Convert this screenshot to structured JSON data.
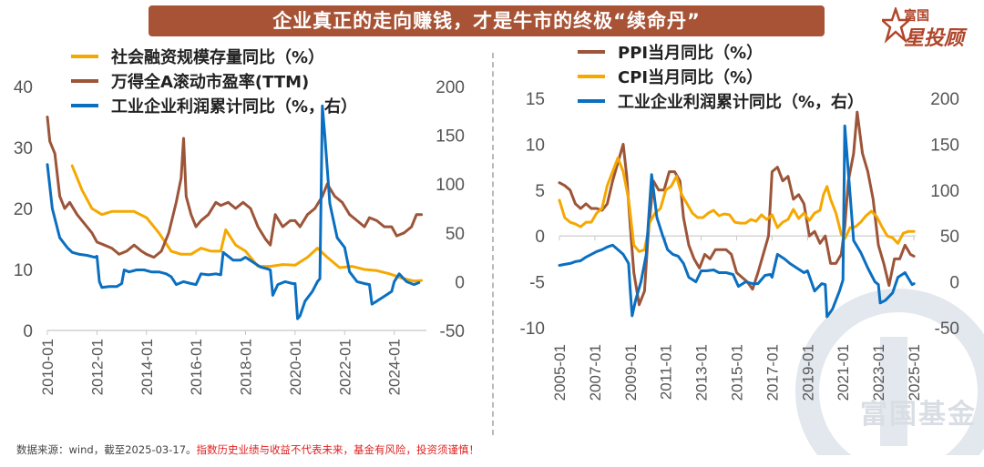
{
  "title": "企业真正的走向赚钱，才是牛市的终极“续命丹”",
  "logo": {
    "top": "富国",
    "bottom": "星投顾"
  },
  "watermark": "富国基金",
  "footer": {
    "source": "数据来源：wind，截至2025-03-17。",
    "warning": "指数历史业绩与收益不代表未来，基金有风险，投资须谨慎！"
  },
  "colors": {
    "orange": "#f5a800",
    "brown": "#9c5538",
    "blue": "#0a6fc0",
    "banner": "#a85335"
  },
  "chart_data": [
    {
      "type": "line",
      "legend": [
        {
          "name": "社会融资规模存量同比（%）",
          "color": "#f5a800"
        },
        {
          "name": "万得全A滚动市盈率(TTM)",
          "color": "#9c5538"
        },
        {
          "name": "工业企业利润累计同比（%，右）",
          "color": "#0a6fc0"
        }
      ],
      "x_ticks": [
        "2010-01",
        "2012-01",
        "2014-01",
        "2016-01",
        "2018-01",
        "2020-01",
        "2022-01",
        "2024-01"
      ],
      "y_left": {
        "ticks": [
          "0",
          "10",
          "20",
          "30",
          "40"
        ],
        "range": [
          0,
          40
        ]
      },
      "y_right": {
        "ticks": [
          "-50",
          "0",
          "50",
          "100",
          "150",
          "200"
        ],
        "range": [
          -50,
          200
        ]
      },
      "series": [
        {
          "name": "社会融资规模存量同比（%）",
          "axis": "left",
          "color": "#f5a800",
          "x": [
            2011.0,
            2011.4,
            2011.8,
            2012.2,
            2012.6,
            2013.0,
            2013.5,
            2014.0,
            2014.5,
            2015.0,
            2015.4,
            2015.8,
            2016.2,
            2016.6,
            2017.0,
            2017.2,
            2017.6,
            2018.0,
            2018.5,
            2019.0,
            2019.5,
            2020.0,
            2020.5,
            2020.9,
            2021.3,
            2021.8,
            2022.3,
            2022.8,
            2023.3,
            2023.8,
            2024.3,
            2024.8,
            2025.1
          ],
          "y": [
            27,
            23,
            20,
            19,
            19.5,
            19.5,
            19.5,
            18.5,
            16,
            13,
            12.5,
            12.5,
            13.5,
            13,
            13,
            16.5,
            14,
            13,
            10.5,
            10.5,
            10.8,
            10.7,
            12,
            13.5,
            12,
            10.3,
            10.5,
            10,
            9.8,
            9.3,
            8.6,
            8.1,
            8.2
          ]
        },
        {
          "name": "万得全A滚动市盈率(TTM)",
          "axis": "left",
          "color": "#9c5538",
          "x": [
            2010.0,
            2010.1,
            2010.3,
            2010.5,
            2010.7,
            2010.9,
            2011.2,
            2011.5,
            2011.8,
            2012.0,
            2012.3,
            2012.6,
            2012.9,
            2013.2,
            2013.5,
            2013.8,
            2014.0,
            2014.3,
            2014.6,
            2014.9,
            2015.2,
            2015.4,
            2015.5,
            2015.6,
            2015.8,
            2016.0,
            2016.2,
            2016.5,
            2016.8,
            2017.0,
            2017.3,
            2017.6,
            2017.9,
            2018.2,
            2018.5,
            2018.8,
            2019.0,
            2019.2,
            2019.5,
            2019.8,
            2020.0,
            2020.2,
            2020.5,
            2020.8,
            2021.1,
            2021.3,
            2021.6,
            2021.9,
            2022.2,
            2022.5,
            2022.8,
            2023.0,
            2023.3,
            2023.6,
            2023.9,
            2024.1,
            2024.4,
            2024.7,
            2024.9,
            2025.1
          ],
          "y": [
            35,
            31,
            29,
            22,
            20,
            21,
            19,
            17.5,
            16,
            14.5,
            14,
            13.5,
            12.5,
            13,
            14,
            13,
            12.5,
            12,
            13,
            16,
            21,
            25,
            31.5,
            22,
            19,
            17,
            18,
            19,
            21,
            20.5,
            21,
            20,
            21,
            20,
            17,
            15,
            14,
            19,
            17,
            18,
            18,
            17,
            19,
            20,
            22,
            24,
            22,
            21,
            19,
            18,
            17,
            18.5,
            18,
            17,
            17,
            15.5,
            16,
            17,
            19,
            19
          ]
        },
        {
          "name": "工业企业利润累计同比（%，右）",
          "axis": "right",
          "color": "#0a6fc0",
          "x": [
            2010.0,
            2010.2,
            2010.5,
            2010.8,
            2011.0,
            2011.3,
            2011.6,
            2011.9,
            2012.0,
            2012.1,
            2012.2,
            2012.5,
            2012.8,
            2013.0,
            2013.1,
            2013.3,
            2013.6,
            2013.9,
            2014.2,
            2014.5,
            2014.8,
            2015.0,
            2015.2,
            2015.5,
            2015.8,
            2016.0,
            2016.2,
            2016.5,
            2016.8,
            2017.0,
            2017.1,
            2017.2,
            2017.5,
            2017.8,
            2018.0,
            2018.3,
            2018.6,
            2018.9,
            2019.0,
            2019.1,
            2019.3,
            2019.6,
            2019.9,
            2020.0,
            2020.1,
            2020.2,
            2020.4,
            2020.7,
            2020.9,
            2021.0,
            2021.1,
            2021.2,
            2021.4,
            2021.7,
            2022.0,
            2022.2,
            2022.5,
            2022.8,
            2023.0,
            2023.1,
            2023.3,
            2023.6,
            2023.9,
            2024.0,
            2024.2,
            2024.5,
            2024.8,
            2025.0
          ],
          "y": [
            120,
            75,
            45,
            35,
            30,
            28,
            27,
            25,
            26,
            0,
            -6,
            -5,
            -5,
            -2,
            12,
            10,
            12,
            12,
            10,
            10,
            8,
            5,
            -3,
            0,
            -2,
            -3,
            8,
            7,
            8,
            7,
            30,
            28,
            22,
            22,
            25,
            20,
            15,
            13,
            12,
            -14,
            -3,
            0,
            -2,
            -2,
            -38,
            -35,
            -20,
            -10,
            0,
            3,
            180,
            150,
            80,
            45,
            35,
            10,
            0,
            -2,
            -3,
            -23,
            -20,
            -15,
            -10,
            0,
            8,
            0,
            -3,
            -1
          ]
        }
      ]
    },
    {
      "type": "line",
      "legend": [
        {
          "name": "PPI当月同比（%）",
          "color": "#9c5538"
        },
        {
          "name": "CPI当月同比（%）",
          "color": "#f5a800"
        },
        {
          "name": "工业企业利润累计同比（%，右）",
          "color": "#0a6fc0"
        }
      ],
      "x_ticks": [
        "2005-01",
        "2007-01",
        "2009-01",
        "2011-01",
        "2013-01",
        "2015-01",
        "2017-01",
        "2019-01",
        "2021-01",
        "2023-01",
        "2025-01"
      ],
      "y_left": {
        "ticks": [
          "-10",
          "-5",
          "0",
          "5",
          "10",
          "15"
        ],
        "range": [
          -10,
          15
        ]
      },
      "y_right": {
        "ticks": [
          "-50",
          "0",
          "50",
          "100",
          "150",
          "200"
        ],
        "range": [
          -50,
          200
        ]
      },
      "series": [
        {
          "name": "PPI当月同比（%）",
          "axis": "left",
          "color": "#9c5538",
          "x": [
            2005.0,
            2005.3,
            2005.6,
            2005.9,
            2006.2,
            2006.5,
            2006.8,
            2007.1,
            2007.4,
            2007.7,
            2008.0,
            2008.3,
            2008.6,
            2008.8,
            2009.0,
            2009.2,
            2009.5,
            2009.8,
            2010.0,
            2010.3,
            2010.6,
            2010.9,
            2011.2,
            2011.5,
            2011.8,
            2012.0,
            2012.3,
            2012.6,
            2012.9,
            2013.2,
            2013.5,
            2013.8,
            2014.1,
            2014.4,
            2014.7,
            2015.0,
            2015.3,
            2015.6,
            2015.9,
            2016.2,
            2016.5,
            2016.8,
            2017.0,
            2017.3,
            2017.6,
            2017.9,
            2018.2,
            2018.5,
            2018.8,
            2019.1,
            2019.4,
            2019.7,
            2020.0,
            2020.3,
            2020.6,
            2020.9,
            2021.1,
            2021.3,
            2021.6,
            2021.8,
            2022.1,
            2022.4,
            2022.7,
            2023.0,
            2023.3,
            2023.6,
            2023.9,
            2024.2,
            2024.5,
            2024.8,
            2025.0
          ],
          "y": [
            5.8,
            5.5,
            5,
            3.5,
            3,
            3.5,
            3,
            3,
            2.8,
            3.5,
            6,
            8,
            10,
            6.5,
            1,
            -4,
            -7.5,
            -6,
            0,
            6,
            5,
            5,
            7,
            7,
            6,
            2,
            -1,
            -2.5,
            -3.5,
            -2,
            -2.5,
            -1.5,
            -1.5,
            -1.5,
            -2,
            -4,
            -4.5,
            -5,
            -5.8,
            -4,
            -2,
            0,
            7,
            7.5,
            6,
            6.5,
            4,
            4.5,
            3.5,
            0,
            0.5,
            -0.8,
            0,
            -3,
            -3,
            -2,
            1,
            6,
            9,
            13.5,
            9,
            7,
            4,
            -1,
            -3,
            -5.4,
            -2.5,
            -2.5,
            -1,
            -2,
            -2.2
          ]
        },
        {
          "name": "CPI当月同比（%）",
          "axis": "left",
          "color": "#f5a800",
          "x": [
            2005.0,
            2005.3,
            2005.6,
            2005.9,
            2006.2,
            2006.5,
            2006.8,
            2007.1,
            2007.4,
            2007.7,
            2008.0,
            2008.3,
            2008.6,
            2008.9,
            2009.2,
            2009.5,
            2009.8,
            2010.1,
            2010.4,
            2010.7,
            2011.0,
            2011.3,
            2011.6,
            2011.9,
            2012.2,
            2012.5,
            2012.8,
            2013.1,
            2013.4,
            2013.7,
            2014.0,
            2014.3,
            2014.6,
            2014.9,
            2015.2,
            2015.5,
            2015.8,
            2016.1,
            2016.4,
            2016.7,
            2017.0,
            2017.3,
            2017.6,
            2017.9,
            2018.2,
            2018.5,
            2018.8,
            2019.1,
            2019.4,
            2019.7,
            2019.9,
            2020.1,
            2020.3,
            2020.6,
            2020.9,
            2021.1,
            2021.4,
            2021.7,
            2022.0,
            2022.3,
            2022.6,
            2022.9,
            2023.2,
            2023.5,
            2023.8,
            2024.1,
            2024.4,
            2024.7,
            2025.0
          ],
          "y": [
            3.9,
            2,
            1.5,
            1.3,
            1,
            1.5,
            1.5,
            2.5,
            3,
            5.5,
            7,
            8.5,
            7,
            4,
            -1,
            -1.7,
            -1.5,
            1.5,
            2.5,
            3,
            5,
            5.4,
            6.5,
            4.5,
            3.5,
            2.5,
            2,
            2,
            2.5,
            2.8,
            2.2,
            2.4,
            2.3,
            1.5,
            1.4,
            1.4,
            1.8,
            1.6,
            2.3,
            1.8,
            2.3,
            0.9,
            1.5,
            1.8,
            2.9,
            1.9,
            2.5,
            1.7,
            2.5,
            2.8,
            4.5,
            5.4,
            4,
            2.5,
            0.2,
            -0.3,
            0.9,
            1,
            1.5,
            2.2,
            2.7,
            2.1,
            1,
            0,
            -0.2,
            -0.8,
            0.3,
            0.5,
            0.5
          ]
        },
        {
          "name": "工业企业利润累计同比（%，右）",
          "axis": "right",
          "color": "#0a6fc0",
          "x": [
            2005.0,
            2005.3,
            2005.6,
            2005.9,
            2006.2,
            2006.5,
            2006.8,
            2007.1,
            2007.4,
            2007.7,
            2008.0,
            2008.3,
            2008.6,
            2008.9,
            2009.0,
            2009.1,
            2009.3,
            2009.6,
            2009.9,
            2010.0,
            2010.2,
            2010.5,
            2010.8,
            2011.1,
            2011.4,
            2011.7,
            2012.0,
            2012.3,
            2012.7,
            2013.0,
            2013.3,
            2013.7,
            2014.0,
            2014.4,
            2014.8,
            2015.1,
            2015.5,
            2015.9,
            2016.2,
            2016.6,
            2016.9,
            2017.0,
            2017.3,
            2017.7,
            2018.0,
            2018.4,
            2018.8,
            2019.0,
            2019.4,
            2019.8,
            2020.0,
            2020.1,
            2020.4,
            2020.8,
            2021.0,
            2021.1,
            2021.3,
            2021.6,
            2022.0,
            2022.4,
            2022.8,
            2023.0,
            2023.1,
            2023.4,
            2023.8,
            2024.1,
            2024.5,
            2024.9,
            2025.0
          ],
          "y": [
            18,
            19,
            20,
            22,
            23,
            27,
            30,
            33,
            35,
            38,
            40,
            35,
            30,
            20,
            -10,
            -37,
            -20,
            0,
            30,
            60,
            117,
            70,
            52,
            35,
            30,
            28,
            20,
            5,
            0,
            12,
            12,
            13,
            10,
            10,
            8,
            -5,
            0,
            -2,
            -2,
            7,
            8,
            5,
            30,
            25,
            20,
            15,
            10,
            12,
            -10,
            -2,
            -3,
            -38,
            -30,
            -10,
            2,
            170,
            120,
            45,
            32,
            15,
            0,
            -3,
            -23,
            -20,
            -12,
            5,
            10,
            -3,
            -2
          ]
        }
      ]
    }
  ]
}
